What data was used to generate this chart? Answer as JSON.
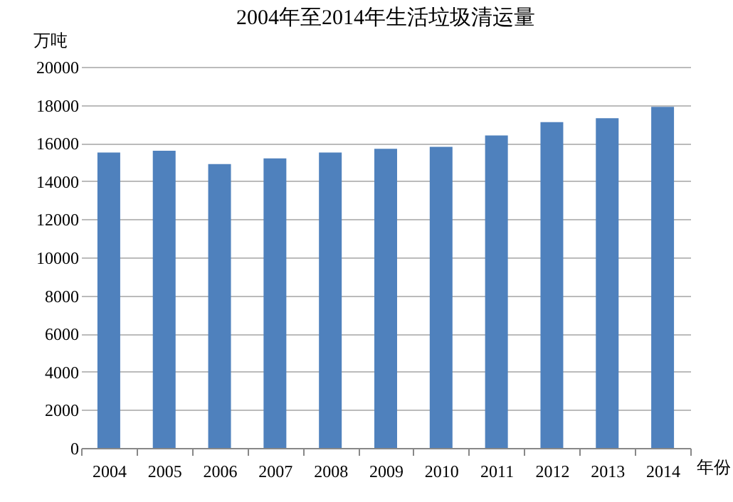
{
  "chart_data": {
    "type": "bar",
    "title": "2004年至2014年生活垃圾清运量",
    "xlabel": "年份",
    "ylabel": "万吨",
    "categories": [
      "2004",
      "2005",
      "2006",
      "2007",
      "2008",
      "2009",
      "2010",
      "2011",
      "2012",
      "2013",
      "2014"
    ],
    "values": [
      15500,
      15600,
      14900,
      15200,
      15500,
      15700,
      15800,
      16400,
      17100,
      17300,
      17900
    ],
    "color": "#4f81bd",
    "ylim": [
      0,
      20000
    ],
    "yticks": [
      0,
      2000,
      4000,
      6000,
      8000,
      10000,
      12000,
      14000,
      16000,
      18000,
      20000
    ],
    "grid": "y"
  }
}
